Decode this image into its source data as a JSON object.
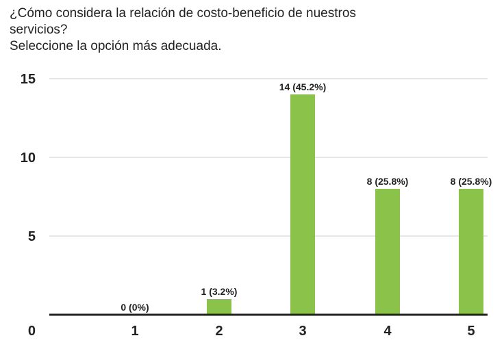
{
  "title": {
    "line1": "¿Cómo considera la relación de costo-beneficio de nuestros",
    "line2": "servicios?",
    "line3": "Seleccione la opción más adecuada."
  },
  "colors": {
    "bar": "#8bc34a",
    "gridline": "#cccccc",
    "baseline": "#222222"
  },
  "chart_data": {
    "type": "bar",
    "title": "¿Cómo considera la relación de costo-beneficio de nuestros servicios? Seleccione la opción más adecuada.",
    "categories": [
      "1",
      "2",
      "3",
      "4",
      "5"
    ],
    "values": [
      0,
      1,
      14,
      8,
      8
    ],
    "data_labels": [
      "0 (0%)",
      "1 (3.2%)",
      "14 (45.2%)",
      "8 (25.8%)",
      "8 (25.8%)"
    ],
    "y_ticks": [
      0,
      5,
      10,
      15
    ],
    "ylim": [
      0,
      15
    ],
    "xlabel": "",
    "ylabel": "",
    "grid": true,
    "legend": "none"
  }
}
